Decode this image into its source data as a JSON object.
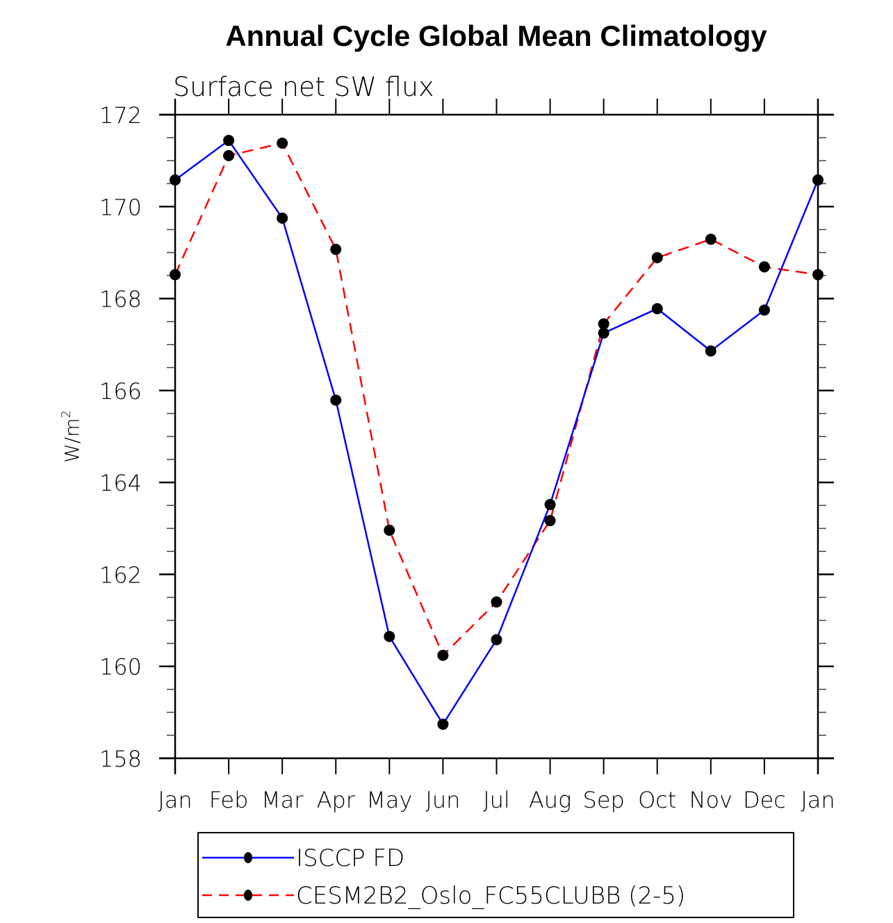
{
  "chart_data": {
    "type": "line",
    "title": "Annual Cycle Global Mean Climatology",
    "subtitle": "Surface net SW flux",
    "xlabel": "",
    "ylabel": "W/m",
    "ylabel_superscript": "2",
    "ylim": [
      158,
      172
    ],
    "yticks": [
      158,
      160,
      162,
      164,
      166,
      168,
      170,
      172
    ],
    "yticks_minor_step": 0.5,
    "categories": [
      "Jan",
      "Feb",
      "Mar",
      "Apr",
      "May",
      "Jun",
      "Jul",
      "Aug",
      "Sep",
      "Oct",
      "Nov",
      "Dec",
      "Jan"
    ],
    "grid": false,
    "legend_position": "bottom",
    "series": [
      {
        "name": "ISCCP FD",
        "color": "#0000ff",
        "line_style": "solid",
        "marker": "filled-circle",
        "values": [
          170.58,
          171.44,
          169.75,
          165.79,
          160.65,
          158.74,
          160.58,
          163.52,
          167.25,
          167.78,
          166.86,
          167.75,
          170.58
        ]
      },
      {
        "name": "CESM2B2_Oslo_FC55CLUBB (2-5)",
        "color": "#ff0000",
        "line_style": "dashed",
        "marker": "filled-circle",
        "values": [
          168.52,
          171.11,
          171.38,
          169.07,
          162.96,
          160.24,
          161.4,
          163.17,
          167.45,
          168.89,
          169.29,
          168.69,
          168.52
        ]
      }
    ]
  }
}
